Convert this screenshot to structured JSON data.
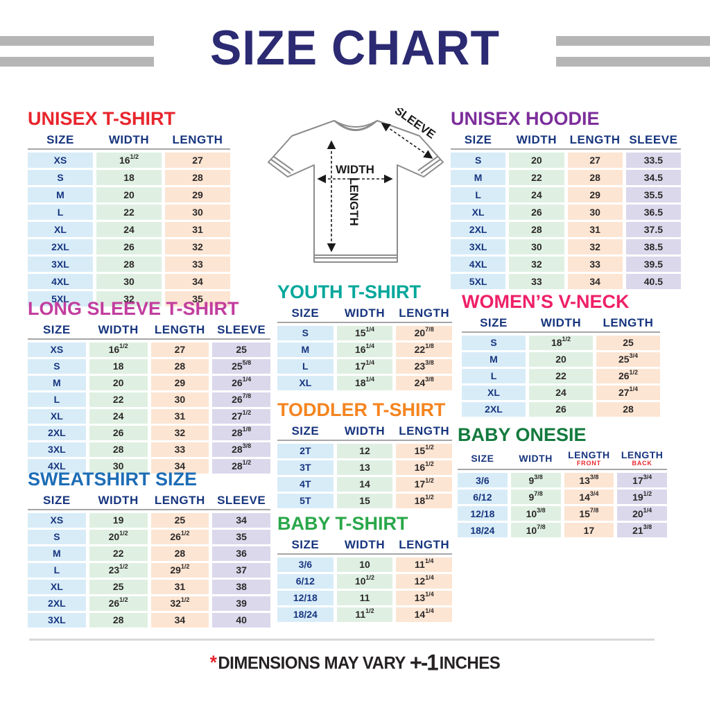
{
  "page": {
    "title": "SIZE CHART",
    "footer": {
      "asterisk": "*",
      "text": "DIMENSIONS MAY VARY",
      "tolerance": "+-1",
      "unit": "INCHES"
    }
  },
  "diagram": {
    "width_label": "WIDTH",
    "length_label": "LENGTH",
    "sleeve_label": "SLEEVE"
  },
  "colors": {
    "main_title": "#2b2a72",
    "stripe_gray": "#b5b5b5",
    "header_navy": "#17357e",
    "value_text": "#2b2828",
    "header_divider": "#a6a6a6",
    "cell_colors": [
      "#d8ecf8",
      "#dff0e2",
      "#fce5d3",
      "#dbd8ec"
    ],
    "sub_header_red": "#e8252d"
  },
  "tables": [
    {
      "id": "unisex-tshirt",
      "title": "UNISEX T-SHIRT",
      "title_color": "#e8252d",
      "columns": [
        {
          "label": "SIZE"
        },
        {
          "label": "WIDTH"
        },
        {
          "label": "LENGTH"
        }
      ],
      "rows": [
        [
          "XS",
          "16^1/2",
          "27"
        ],
        [
          "S",
          "18",
          "28"
        ],
        [
          "M",
          "20",
          "29"
        ],
        [
          "L",
          "22",
          "30"
        ],
        [
          "XL",
          "24",
          "31"
        ],
        [
          "2XL",
          "26",
          "32"
        ],
        [
          "3XL",
          "28",
          "33"
        ],
        [
          "4XL",
          "30",
          "34"
        ],
        [
          "5XL",
          "32",
          "35"
        ]
      ]
    },
    {
      "id": "unisex-hoodie",
      "title": "UNISEX HOODIE",
      "title_color": "#7c2e9b",
      "columns": [
        {
          "label": "SIZE"
        },
        {
          "label": "WIDTH"
        },
        {
          "label": "LENGTH"
        },
        {
          "label": "SLEEVE"
        }
      ],
      "rows": [
        [
          "S",
          "20",
          "27",
          "33.5"
        ],
        [
          "M",
          "22",
          "28",
          "34.5"
        ],
        [
          "L",
          "24",
          "29",
          "35.5"
        ],
        [
          "XL",
          "26",
          "30",
          "36.5"
        ],
        [
          "2XL",
          "28",
          "31",
          "37.5"
        ],
        [
          "3XL",
          "30",
          "32",
          "38.5"
        ],
        [
          "4XL",
          "32",
          "33",
          "39.5"
        ],
        [
          "5XL",
          "33",
          "34",
          "40.5"
        ]
      ]
    },
    {
      "id": "long-sleeve-tshirt",
      "title": "LONG SLEEVE T-SHIRT",
      "title_color": "#c23d9e",
      "columns": [
        {
          "label": "SIZE"
        },
        {
          "label": "WIDTH"
        },
        {
          "label": "LENGTH"
        },
        {
          "label": "SLEEVE"
        }
      ],
      "rows": [
        [
          "XS",
          "16^1/2",
          "27",
          "25"
        ],
        [
          "S",
          "18",
          "28",
          "25^5/8"
        ],
        [
          "M",
          "20",
          "29",
          "26^1/4"
        ],
        [
          "L",
          "22",
          "30",
          "26^7/8"
        ],
        [
          "XL",
          "24",
          "31",
          "27^1/2"
        ],
        [
          "2XL",
          "26",
          "32",
          "28^1/8"
        ],
        [
          "3XL",
          "28",
          "33",
          "28^3/8"
        ],
        [
          "4XL",
          "30",
          "34",
          "28^1/2"
        ]
      ]
    },
    {
      "id": "youth-tshirt",
      "title": "YOUTH T-SHIRT",
      "title_color": "#00a79b",
      "columns": [
        {
          "label": "SIZE"
        },
        {
          "label": "WIDTH"
        },
        {
          "label": "LENGTH"
        }
      ],
      "rows": [
        [
          "S",
          "15^1/4",
          "20^7/8"
        ],
        [
          "M",
          "16^1/4",
          "22^1/8"
        ],
        [
          "L",
          "17^1/4",
          "23^3/8"
        ],
        [
          "XL",
          "18^1/4",
          "24^3/8"
        ]
      ]
    },
    {
      "id": "womens-vneck",
      "title": "WOMEN’S V-NECK",
      "title_color": "#ee2068",
      "columns": [
        {
          "label": "SIZE"
        },
        {
          "label": "WIDTH"
        },
        {
          "label": "LENGTH"
        }
      ],
      "rows": [
        [
          "S",
          "18^1/2",
          "25"
        ],
        [
          "M",
          "20",
          "25^3/4"
        ],
        [
          "L",
          "22",
          "26^1/2"
        ],
        [
          "XL",
          "24",
          "27^1/4"
        ],
        [
          "2XL",
          "26",
          "28"
        ]
      ]
    },
    {
      "id": "toddler-tshirt",
      "title": "TODDLER T-SHIRT",
      "title_color": "#f5841f",
      "columns": [
        {
          "label": "SIZE"
        },
        {
          "label": "WIDTH"
        },
        {
          "label": "LENGTH"
        }
      ],
      "rows": [
        [
          "2T",
          "12",
          "15^1/2"
        ],
        [
          "3T",
          "13",
          "16^1/2"
        ],
        [
          "4T",
          "14",
          "17^1/2"
        ],
        [
          "5T",
          "15",
          "18^1/2"
        ]
      ]
    },
    {
      "id": "baby-onesie",
      "title": "BABY ONESIE",
      "title_color": "#137a3e",
      "columns": [
        {
          "label": "SIZE"
        },
        {
          "label": "WIDTH"
        },
        {
          "label": "LENGTH",
          "sub": "FRONT"
        },
        {
          "label": "LENGTH",
          "sub": "BACK"
        }
      ],
      "rows": [
        [
          "3/6",
          "9^3/8",
          "13^3/8",
          "17^3/4"
        ],
        [
          "6/12",
          "9^7/8",
          "14^3/4",
          "19^1/2"
        ],
        [
          "12/18",
          "10^3/8",
          "15^7/8",
          "20^1/4"
        ],
        [
          "18/24",
          "10^7/8",
          "17",
          "21^3/8"
        ]
      ]
    },
    {
      "id": "sweatshirt",
      "title": "SWEATSHIRT SIZE",
      "title_color": "#1d6db6",
      "columns": [
        {
          "label": "SIZE"
        },
        {
          "label": "WIDTH"
        },
        {
          "label": "LENGTH"
        },
        {
          "label": "SLEEVE"
        }
      ],
      "rows": [
        [
          "XS",
          "19",
          "25",
          "34"
        ],
        [
          "S",
          "20^1/2",
          "26^1/2",
          "35"
        ],
        [
          "M",
          "22",
          "28",
          "36"
        ],
        [
          "L",
          "23^1/2",
          "29^1/2",
          "37"
        ],
        [
          "XL",
          "25",
          "31",
          "38"
        ],
        [
          "2XL",
          "26^1/2",
          "32^1/2",
          "39"
        ],
        [
          "3XL",
          "28",
          "34",
          "40"
        ]
      ]
    },
    {
      "id": "baby-tshirt",
      "title": "BABY T-SHIRT",
      "title_color": "#2aa74a",
      "columns": [
        {
          "label": "SIZE"
        },
        {
          "label": "WIDTH"
        },
        {
          "label": "LENGTH"
        }
      ],
      "rows": [
        [
          "3/6",
          "10",
          "11^1/4"
        ],
        [
          "6/12",
          "10^1/2",
          "12^1/4"
        ],
        [
          "12/18",
          "11",
          "13^1/4"
        ],
        [
          "18/24",
          "11^1/2",
          "14^1/4"
        ]
      ]
    }
  ]
}
